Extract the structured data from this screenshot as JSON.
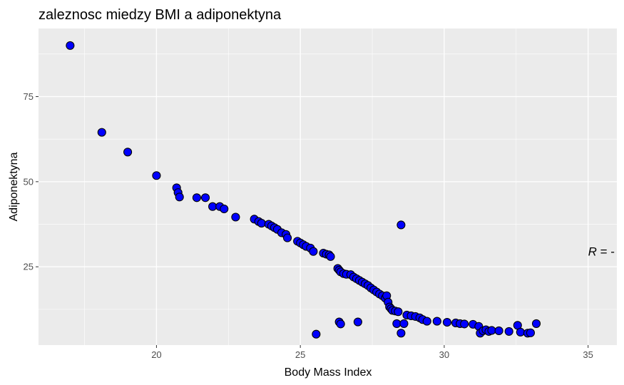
{
  "chart_data": {
    "type": "scatter",
    "title": "zaleznosc miedzy BMI a adiponektyna",
    "xlabel": "Body Mass Index",
    "ylabel": "Adiponektyna",
    "xlim": [
      15.9,
      36.0
    ],
    "ylim": [
      2.0,
      95.0
    ],
    "x_ticks": [
      20,
      25,
      30,
      35
    ],
    "y_ticks": [
      25,
      50,
      75
    ],
    "grid": true,
    "annotation": {
      "prefix": "R",
      "text": " = -",
      "x": 35.0,
      "y": 29.5
    },
    "point_fill": "#0000ff",
    "point_stroke": "#000000",
    "panel_bg": "#ebebeb",
    "grid_color": "#ffffff",
    "points": [
      [
        17.0,
        90.0
      ],
      [
        18.1,
        64.5
      ],
      [
        19.0,
        58.7
      ],
      [
        20.0,
        51.8
      ],
      [
        20.7,
        48.2
      ],
      [
        20.75,
        46.8
      ],
      [
        20.8,
        45.5
      ],
      [
        21.4,
        45.3
      ],
      [
        21.7,
        45.3
      ],
      [
        21.95,
        42.7
      ],
      [
        22.2,
        42.7
      ],
      [
        22.35,
        42.0
      ],
      [
        22.75,
        39.6
      ],
      [
        23.4,
        39.0
      ],
      [
        23.55,
        38.3
      ],
      [
        23.65,
        37.8
      ],
      [
        23.9,
        37.5
      ],
      [
        24.0,
        37.0
      ],
      [
        24.1,
        36.5
      ],
      [
        24.2,
        36.0
      ],
      [
        24.35,
        35.0
      ],
      [
        24.5,
        34.5
      ],
      [
        24.55,
        33.5
      ],
      [
        24.9,
        32.5
      ],
      [
        25.0,
        32.0
      ],
      [
        25.1,
        31.5
      ],
      [
        25.2,
        31.0
      ],
      [
        25.35,
        30.5
      ],
      [
        25.45,
        29.5
      ],
      [
        25.8,
        29.0
      ],
      [
        25.9,
        28.7
      ],
      [
        26.0,
        28.5
      ],
      [
        26.05,
        28.0
      ],
      [
        26.3,
        24.5
      ],
      [
        26.35,
        24.0
      ],
      [
        26.4,
        23.5
      ],
      [
        26.5,
        23.0
      ],
      [
        26.6,
        22.8
      ],
      [
        26.75,
        22.7
      ],
      [
        26.85,
        22.0
      ],
      [
        26.95,
        21.5
      ],
      [
        27.05,
        21.0
      ],
      [
        27.15,
        20.5
      ],
      [
        27.25,
        20.0
      ],
      [
        27.35,
        19.5
      ],
      [
        27.45,
        18.8
      ],
      [
        27.55,
        18.2
      ],
      [
        27.65,
        17.6
      ],
      [
        27.75,
        17.0
      ],
      [
        27.85,
        16.5
      ],
      [
        27.95,
        15.8
      ],
      [
        28.0,
        16.5
      ],
      [
        28.05,
        14.6
      ],
      [
        28.1,
        13.2
      ],
      [
        28.15,
        12.7
      ],
      [
        28.2,
        12.2
      ],
      [
        28.3,
        12.0
      ],
      [
        28.4,
        11.8
      ],
      [
        28.5,
        37.3
      ],
      [
        28.7,
        10.8
      ],
      [
        28.85,
        10.6
      ],
      [
        29.0,
        10.4
      ],
      [
        29.15,
        10.0
      ],
      [
        29.25,
        9.5
      ],
      [
        29.4,
        9.0
      ],
      [
        29.75,
        9.0
      ],
      [
        30.1,
        8.7
      ],
      [
        30.4,
        8.5
      ],
      [
        30.55,
        8.3
      ],
      [
        30.7,
        8.2
      ],
      [
        31.0,
        8.1
      ],
      [
        31.2,
        7.5
      ],
      [
        31.25,
        5.5
      ],
      [
        31.35,
        6.2
      ],
      [
        31.45,
        6.5
      ],
      [
        31.55,
        6.0
      ],
      [
        31.65,
        6.3
      ],
      [
        31.9,
        6.2
      ],
      [
        32.25,
        6.0
      ],
      [
        32.55,
        7.8
      ],
      [
        32.65,
        5.8
      ],
      [
        32.9,
        5.5
      ],
      [
        33.0,
        5.6
      ],
      [
        33.2,
        8.3
      ],
      [
        25.55,
        5.2
      ],
      [
        26.35,
        8.8
      ],
      [
        26.4,
        8.2
      ],
      [
        27.0,
        8.8
      ],
      [
        28.35,
        8.3
      ],
      [
        28.5,
        5.5
      ],
      [
        28.6,
        8.3
      ]
    ]
  }
}
